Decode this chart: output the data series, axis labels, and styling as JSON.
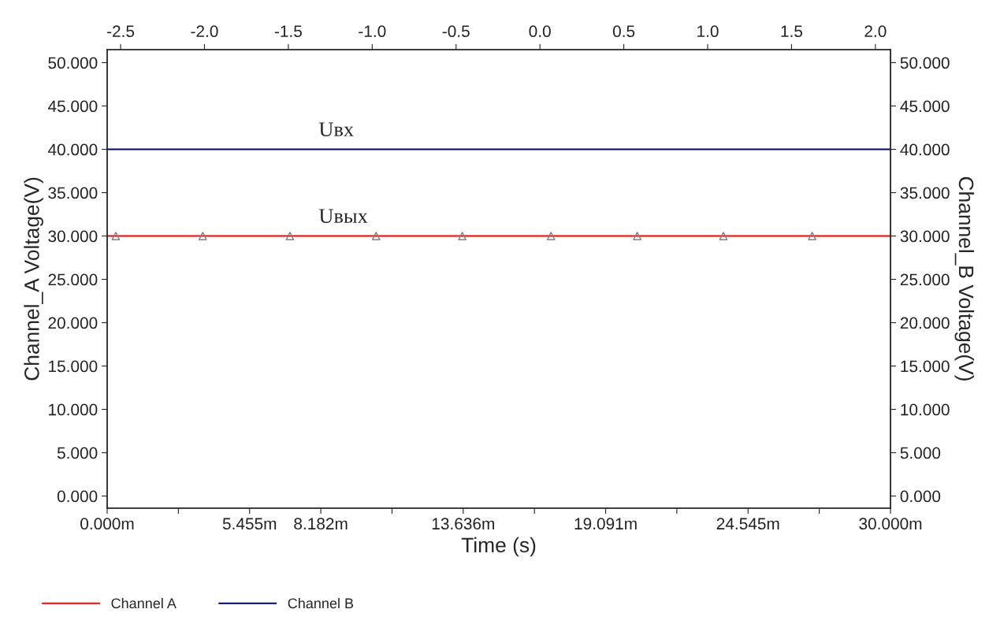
{
  "chart_data": {
    "type": "line",
    "xlabel": "Time (s)",
    "ylabel": "Channel_A Voltage(V)",
    "y2label": "Channel_B Voltage(V)",
    "xlim": [
      0,
      30
    ],
    "xticks": [
      {
        "value": 0,
        "label": "0.000m"
      },
      {
        "value": 2.727,
        "label": null
      },
      {
        "value": 5.455,
        "label": "5.455m"
      },
      {
        "value": 8.182,
        "label": "8.182m"
      },
      {
        "value": 10.909,
        "label": null
      },
      {
        "value": 13.636,
        "label": "13.636m"
      },
      {
        "value": 16.364,
        "label": null
      },
      {
        "value": 19.091,
        "label": "19.091m"
      },
      {
        "value": 21.818,
        "label": null
      },
      {
        "value": 24.545,
        "label": "24.545m"
      },
      {
        "value": 27.273,
        "label": null
      },
      {
        "value": 30,
        "label": "30.000m"
      }
    ],
    "x2lim": [
      -2.58,
      2.09
    ],
    "x2ticks": [
      -2.5,
      {
        "value": -2,
        "label": "-2.0"
      },
      -1.5,
      {
        "value": -1,
        "label": "-1.0"
      },
      -0.5,
      {
        "value": 0,
        "label": "0.0"
      },
      0.5,
      {
        "value": 1,
        "label": "1.0"
      },
      1.5,
      {
        "value": 2,
        "label": "2.0"
      }
    ],
    "ylim": [
      -1.4,
      51.5
    ],
    "yticks": [
      {
        "value": 0,
        "label": "0.000"
      },
      {
        "value": 5,
        "label": "5.000"
      },
      {
        "value": 10,
        "label": "10.000"
      },
      {
        "value": 15,
        "label": "15.000"
      },
      {
        "value": 20,
        "label": "20.000"
      },
      {
        "value": 25,
        "label": "25.000"
      },
      {
        "value": 30,
        "label": "30.000"
      },
      {
        "value": 35,
        "label": "35.000"
      },
      {
        "value": 40,
        "label": "40.000"
      },
      {
        "value": 45,
        "label": "45.000"
      },
      {
        "value": 50,
        "label": "50.000"
      }
    ],
    "y2lim": [
      -1.4,
      51.5
    ],
    "y2ticks": [
      {
        "value": 0,
        "label": "0.000"
      },
      {
        "value": 5,
        "label": "5.000"
      },
      {
        "value": 10,
        "label": "10.000"
      },
      {
        "value": 15,
        "label": "15.000"
      },
      {
        "value": 20,
        "label": "20.000"
      },
      {
        "value": 25,
        "label": "25.000"
      },
      {
        "value": 30,
        "label": "30.000"
      },
      {
        "value": 35,
        "label": "35.000"
      },
      {
        "value": 40,
        "label": "40.000"
      },
      {
        "value": 45,
        "label": "45.000"
      },
      {
        "value": 50,
        "label": "50.000"
      }
    ],
    "series": [
      {
        "name": "Channel A",
        "color": "#ff0000",
        "x": [
          0,
          30
        ],
        "values": [
          30,
          30
        ]
      },
      {
        "color": "#808080",
        "type": "scatter",
        "marker": "triangle",
        "x": [
          0.33,
          3.66,
          7.0,
          10.3,
          13.6,
          17.0,
          20.3,
          23.6,
          27.0
        ],
        "values": [
          30,
          30,
          30,
          30,
          30,
          30,
          30,
          30,
          30
        ]
      },
      {
        "name": "Channel B",
        "color": "#00007f",
        "axis": "y2",
        "x": [
          0,
          30
        ],
        "values": [
          40,
          40
        ]
      }
    ],
    "annotations": [
      {
        "text": "Uвх",
        "x": 8.1,
        "y": 40
      },
      {
        "text": "Uвых",
        "x": 8.1,
        "y": 30
      }
    ],
    "grid": false,
    "legend": "bottom left"
  }
}
